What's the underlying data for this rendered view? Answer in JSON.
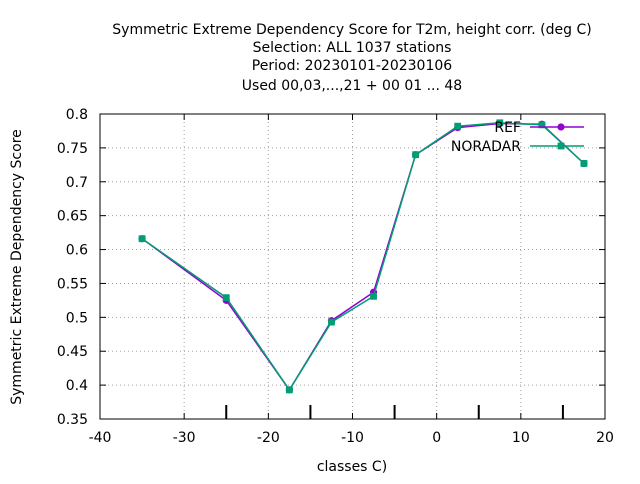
{
  "title_lines": [
    "Symmetric Extreme Dependency Score  for T2m, height corr. (deg C)",
    "Selection: ALL   1037 stations",
    "Period: 20230101-20230106",
    "Used  00,03,...,21  + 00 01 ... 48"
  ],
  "colors": {
    "background": "#ffffff",
    "axis": "#000000",
    "grid": "#a0a0a0",
    "ref": "#9400d3",
    "noradar": "#009e73"
  },
  "chart_data": {
    "type": "line",
    "xlabel": "classes C)",
    "ylabel": "Symmetric Extreme Dependency Score",
    "xlim": [
      -40,
      20
    ],
    "ylim": [
      0.35,
      0.8
    ],
    "xticks": [
      -40,
      -30,
      -20,
      -10,
      0,
      10,
      20
    ],
    "xtick_labels": [
      "-40",
      "-30",
      "-20",
      "-10",
      "0",
      "10",
      "20"
    ],
    "yticks": [
      0.35,
      0.4,
      0.45,
      0.5,
      0.55,
      0.6,
      0.65,
      0.7,
      0.75,
      0.8
    ],
    "ytick_labels": [
      "0.35",
      "0.4",
      "0.45",
      "0.5",
      "0.55",
      "0.6",
      "0.65",
      "0.7",
      "0.75",
      "0.8"
    ],
    "minor_xticks": [
      -25,
      -15,
      -5,
      5,
      15
    ],
    "grid": true,
    "legend_position": "top-right",
    "series": [
      {
        "name": "REF",
        "color": "#9400d3",
        "marker": "circle",
        "x": [
          -35,
          -25,
          -17.5,
          -12.5,
          -7.5,
          -2.5,
          2.5,
          7.5,
          12.5,
          17.5
        ],
        "y": [
          0.616,
          0.525,
          0.393,
          0.495,
          0.537,
          0.74,
          0.78,
          0.786,
          0.785,
          0.727
        ]
      },
      {
        "name": "NORADAR",
        "color": "#009e73",
        "marker": "square",
        "x": [
          -35,
          -25,
          -17.5,
          -12.5,
          -7.5,
          -2.5,
          2.5,
          7.5,
          12.5,
          17.5
        ],
        "y": [
          0.616,
          0.529,
          0.393,
          0.493,
          0.531,
          0.74,
          0.782,
          0.787,
          0.784,
          0.727
        ]
      }
    ]
  }
}
